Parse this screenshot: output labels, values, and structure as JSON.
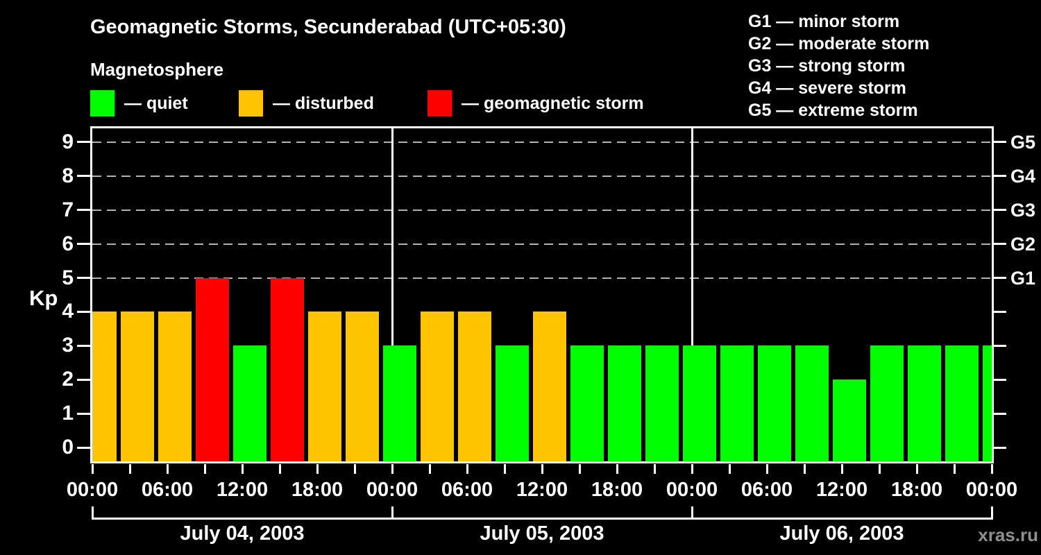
{
  "title": "Geomagnetic Storms, Secunderabad (UTC+05:30)",
  "subtitle": "Magnetosphere",
  "legend": {
    "items": [
      {
        "key": "quiet",
        "label": "— quiet",
        "color": "#00ff00"
      },
      {
        "key": "disturbed",
        "label": "— disturbed",
        "color": "#ffc400"
      },
      {
        "key": "storm",
        "label": "— geomagnetic storm",
        "color": "#ff0000"
      }
    ]
  },
  "storm_scale": [
    "G1 — minor storm",
    "G2 — moderate storm",
    "G3 — strong storm",
    "G4 — severe storm",
    "G5 — extreme storm"
  ],
  "watermark": "xras.ru",
  "chart_data": {
    "type": "bar",
    "ylabel": "Kp",
    "ylim": [
      0,
      9
    ],
    "yticks": [
      0,
      1,
      2,
      3,
      4,
      5,
      6,
      7,
      8,
      9
    ],
    "grid_kp": [
      5,
      6,
      7,
      8,
      9
    ],
    "interval_hours": 3,
    "x_tick_labels": [
      "00:00",
      "06:00",
      "12:00",
      "18:00",
      "00:00",
      "06:00",
      "12:00",
      "18:00",
      "00:00",
      "06:00",
      "12:00",
      "18:00",
      "00:00"
    ],
    "right_axis": [
      {
        "kp": 5,
        "label": "G1"
      },
      {
        "kp": 6,
        "label": "G2"
      },
      {
        "kp": 7,
        "label": "G3"
      },
      {
        "kp": 8,
        "label": "G4"
      },
      {
        "kp": 9,
        "label": "G5"
      }
    ],
    "days": [
      {
        "date": "July 04, 2003",
        "kp": [
          4,
          4,
          4,
          5,
          3,
          5,
          4,
          4
        ],
        "status": [
          "disturbed",
          "disturbed",
          "disturbed",
          "storm",
          "quiet",
          "storm",
          "disturbed",
          "disturbed"
        ]
      },
      {
        "date": "July 05, 2003",
        "kp": [
          3,
          4,
          4,
          3,
          4,
          3,
          3,
          3
        ],
        "status": [
          "quiet",
          "disturbed",
          "disturbed",
          "quiet",
          "disturbed",
          "quiet",
          "quiet",
          "quiet"
        ]
      },
      {
        "date": "July 06, 2003",
        "kp": [
          3,
          3,
          3,
          3,
          2,
          3,
          3,
          3
        ],
        "status": [
          "quiet",
          "quiet",
          "quiet",
          "quiet",
          "quiet",
          "quiet",
          "quiet",
          "quiet"
        ]
      }
    ],
    "next_day_partial": {
      "kp": 3,
      "status": "quiet"
    },
    "status_colors": {
      "quiet": "#00ff00",
      "disturbed": "#ffc400",
      "storm": "#ff0000"
    }
  }
}
